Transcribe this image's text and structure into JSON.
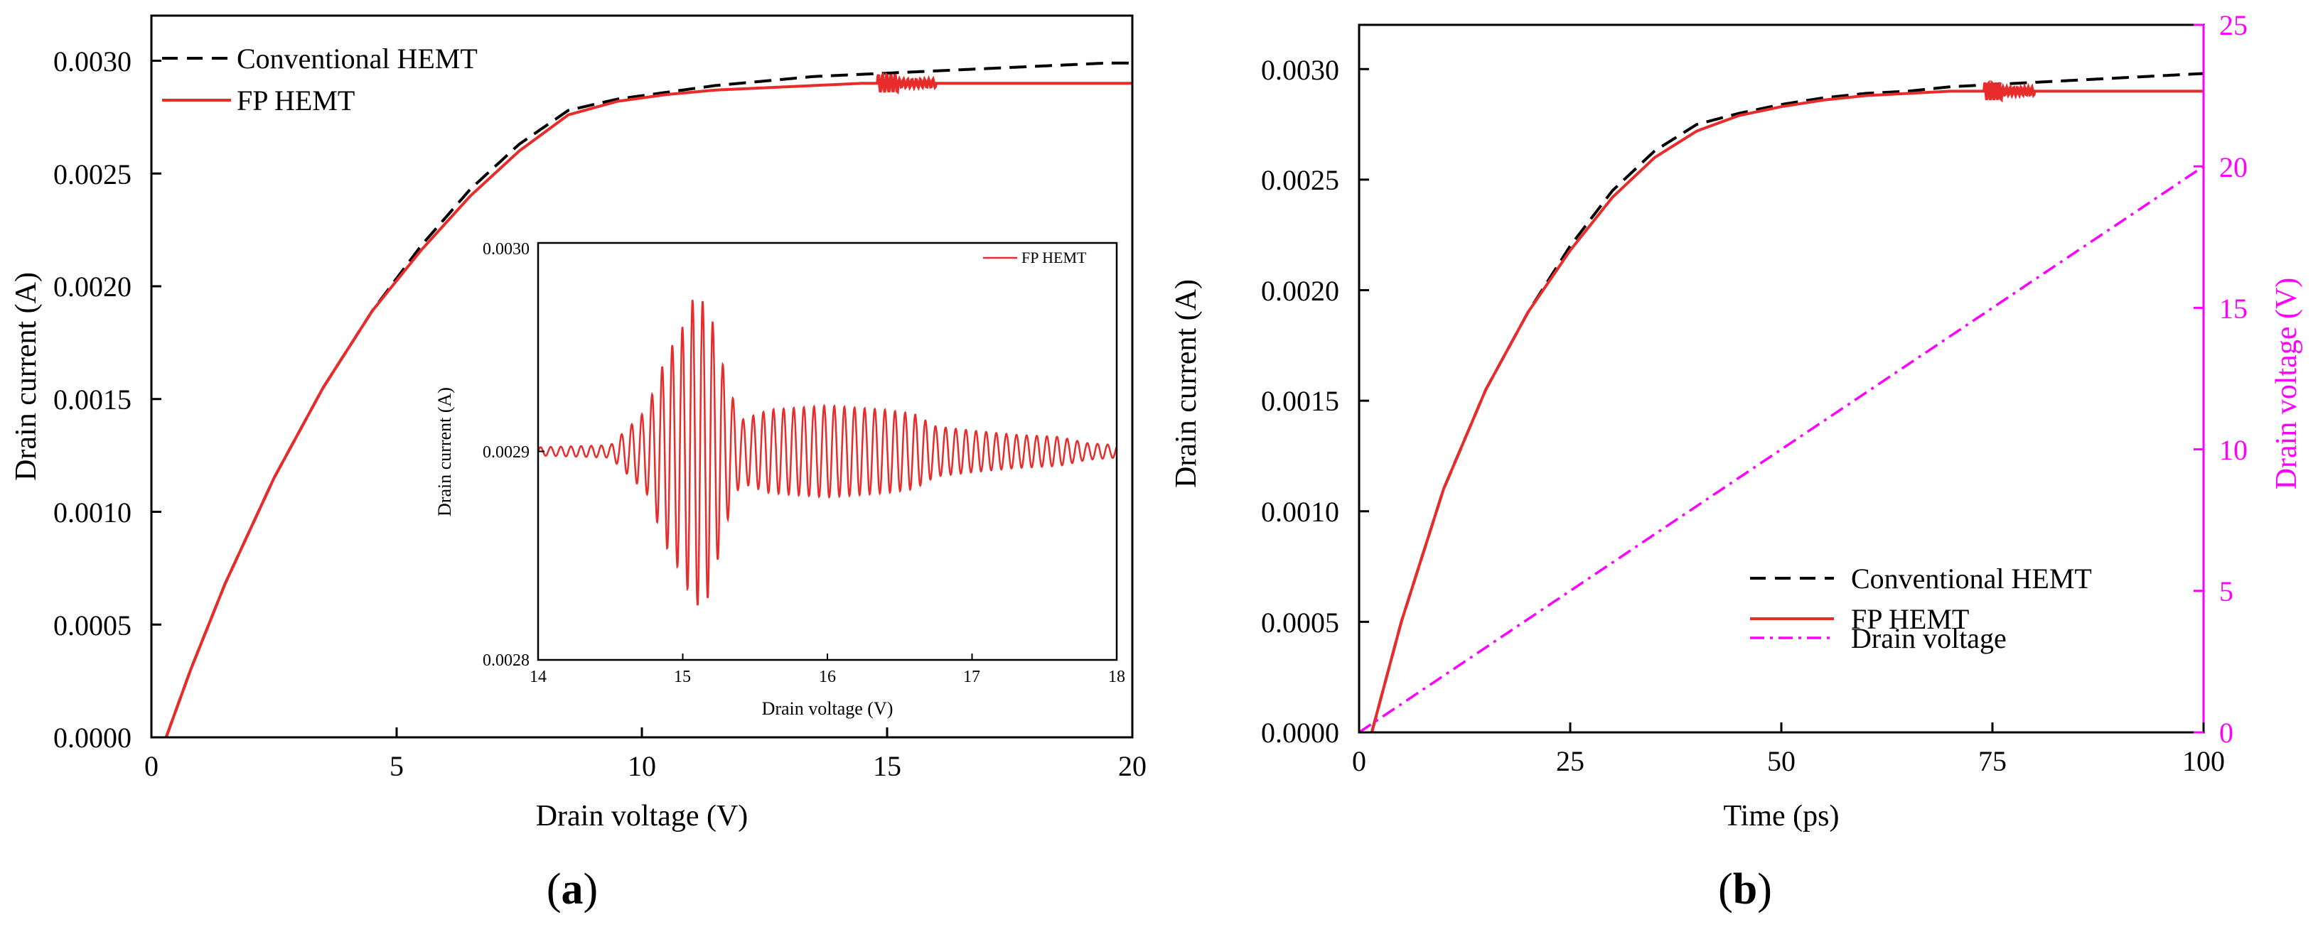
{
  "chart_data": [
    {
      "id": "a",
      "type": "line",
      "panel_label": "a",
      "xlabel": "Drain voltage (V)",
      "ylabel": "Drain current (A)",
      "xlim": [
        0,
        20
      ],
      "ylim": [
        0,
        0.0032
      ],
      "xticks": [
        "0",
        "5",
        "10",
        "15",
        "20"
      ],
      "yticks": [
        "0.0000",
        "0.0005",
        "0.0010",
        "0.0015",
        "0.0020",
        "0.0025",
        "0.0030"
      ],
      "legend_position": "top-left",
      "series": [
        {
          "name": "Conventional HEMT",
          "color": "#000000",
          "style": "dashed",
          "x": [
            0.3,
            0.8,
            1.5,
            2.5,
            3.5,
            4.5,
            5.5,
            6.5,
            7.5,
            8.5,
            9.5,
            10.5,
            11.5,
            12.5,
            13.5,
            14.5,
            15.5,
            16.5,
            17.5,
            18.5,
            19.5,
            20
          ],
          "y": [
            0.0,
            0.0003,
            0.00068,
            0.00115,
            0.00155,
            0.00189,
            0.00218,
            0.00243,
            0.00263,
            0.00278,
            0.00283,
            0.00286,
            0.00289,
            0.00291,
            0.00293,
            0.00294,
            0.00295,
            0.00296,
            0.00297,
            0.00298,
            0.00299,
            0.00299
          ]
        },
        {
          "name": "FP HEMT",
          "color": "#e82c2c",
          "style": "solid",
          "oscillation": {
            "x_range": [
              14.8,
              16.0
            ],
            "amplitude": 4e-05
          },
          "x": [
            0.3,
            0.8,
            1.5,
            2.5,
            3.5,
            4.5,
            5.5,
            6.5,
            7.5,
            8.5,
            9.5,
            10.5,
            11.5,
            12.5,
            13.5,
            14.5,
            15.5,
            16.5,
            17.5,
            18.5,
            19.5,
            20
          ],
          "y": [
            0.0,
            0.0003,
            0.00068,
            0.00115,
            0.00155,
            0.00189,
            0.00216,
            0.0024,
            0.0026,
            0.00276,
            0.00282,
            0.00285,
            0.00287,
            0.00288,
            0.00289,
            0.0029,
            0.0029,
            0.0029,
            0.0029,
            0.0029,
            0.0029,
            0.0029
          ]
        }
      ]
    },
    {
      "id": "a-inset",
      "type": "line",
      "xlabel": "Drain voltage (V)",
      "ylabel": "Drain current (A)",
      "xlim": [
        14,
        18
      ],
      "ylim": [
        0.0028,
        0.003
      ],
      "xticks": [
        "14",
        "15",
        "16",
        "17",
        "18"
      ],
      "yticks": [
        "0.0028",
        "0.0029",
        "0.0030"
      ],
      "legend_position": "top-right",
      "series": [
        {
          "name": "FP HEMT",
          "color": "#e82c2c",
          "style": "solid",
          "baseline": 0.0029,
          "envelope": {
            "x": [
              14.0,
              14.5,
              14.75,
              14.88,
              15.0,
              15.08,
              15.18,
              15.3,
              15.4,
              15.6,
              16.0,
              16.4,
              16.6,
              16.75,
              17.0,
              17.3,
              17.6,
              17.8,
              18.0
            ],
            "amplitude": [
              2e-06,
              3e-06,
              2e-05,
              4.5e-05,
              6e-05,
              7.5e-05,
              7e-05,
              3.5e-05,
              1.5e-05,
              2e-05,
              2.2e-05,
              2e-05,
              1.8e-05,
              1.2e-05,
              1e-05,
              8e-06,
              7e-06,
              4e-06,
              3e-06
            ]
          },
          "period": 0.07
        }
      ]
    },
    {
      "id": "b",
      "type": "line",
      "panel_label": "b",
      "xlabel": "Time (ps)",
      "ylabel": "Drain current (A)",
      "y2label": "Drain voltage (V)",
      "y2color": "#ff00ff",
      "xlim": [
        0,
        100
      ],
      "ylim": [
        0,
        0.0032
      ],
      "y2lim": [
        0,
        25
      ],
      "xticks": [
        "0",
        "25",
        "50",
        "75",
        "100"
      ],
      "yticks": [
        "0.0000",
        "0.0005",
        "0.0010",
        "0.0015",
        "0.0020",
        "0.0025",
        "0.0030"
      ],
      "y2ticks": [
        "0",
        "5",
        "10",
        "15",
        "20",
        "25"
      ],
      "legend_position": "bottom-right",
      "series": [
        {
          "name": "Conventional HEMT",
          "color": "#000000",
          "style": "dashed",
          "axis": "left",
          "x": [
            1.5,
            5,
            10,
            15,
            20,
            25,
            30,
            35,
            40,
            45,
            50,
            55,
            60,
            65,
            70,
            75,
            80,
            85,
            90,
            95,
            100
          ],
          "y": [
            0.0,
            0.0005,
            0.0011,
            0.00155,
            0.0019,
            0.0022,
            0.00245,
            0.00263,
            0.00275,
            0.0028,
            0.00284,
            0.00287,
            0.00289,
            0.0029,
            0.00292,
            0.00293,
            0.00294,
            0.00295,
            0.00296,
            0.00297,
            0.00298
          ]
        },
        {
          "name": "FP HEMT",
          "color": "#e82c2c",
          "style": "solid",
          "axis": "left",
          "oscillation": {
            "x_range": [
              74,
              80
            ],
            "amplitude": 4e-05
          },
          "x": [
            1.5,
            5,
            10,
            15,
            20,
            25,
            30,
            35,
            40,
            45,
            50,
            55,
            60,
            65,
            70,
            75,
            80,
            85,
            90,
            95,
            100
          ],
          "y": [
            0.0,
            0.0005,
            0.0011,
            0.00155,
            0.0019,
            0.00218,
            0.00242,
            0.0026,
            0.00272,
            0.00279,
            0.00283,
            0.00286,
            0.00288,
            0.00289,
            0.0029,
            0.0029,
            0.0029,
            0.0029,
            0.0029,
            0.0029,
            0.0029
          ]
        },
        {
          "name": "Drain voltage",
          "color": "#ff00ff",
          "style": "dashdot",
          "axis": "right",
          "x": [
            0,
            100
          ],
          "y": [
            0,
            20
          ]
        }
      ]
    }
  ]
}
